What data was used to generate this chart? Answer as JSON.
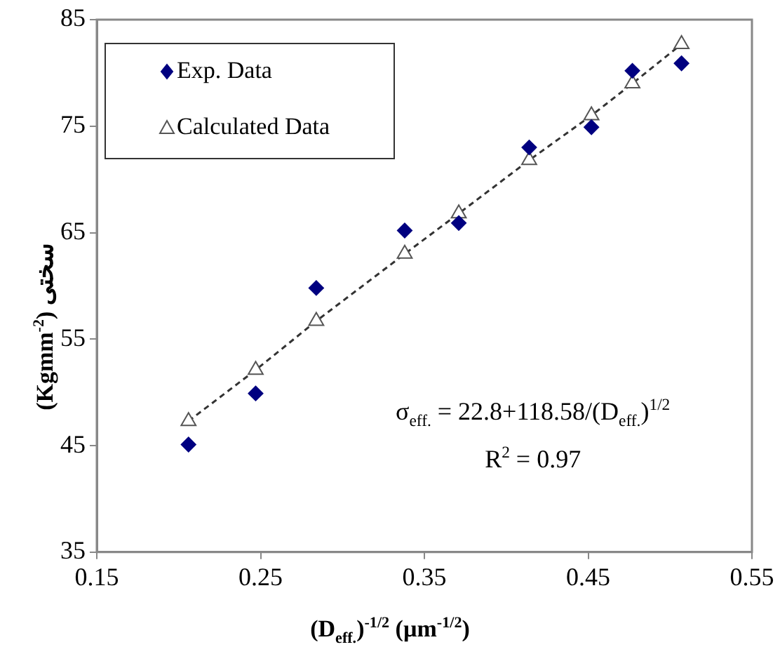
{
  "chart_data": {
    "type": "scatter",
    "xlabel": "(D$_{eff.}$)$^{-1/2}$ (µm$^{-1/2}$)",
    "ylabel": "(Kgmm$^{-2}$) سختی",
    "xlim": [
      0.15,
      0.55
    ],
    "xticks": [
      0.15,
      0.25,
      0.35,
      0.45,
      0.55
    ],
    "ylim": [
      35,
      85
    ],
    "yticks": [
      35,
      45,
      55,
      65,
      75,
      85
    ],
    "grid": false,
    "legend": "top left",
    "series": [
      {
        "name": "Exp. Data",
        "color": "#000080",
        "marker": "diamond",
        "x": [
          0.206,
          0.247,
          0.284,
          0.338,
          0.371,
          0.414,
          0.452,
          0.477,
          0.507
        ],
        "values": [
          45.1,
          49.9,
          59.8,
          65.2,
          65.9,
          73.0,
          74.9,
          80.2,
          80.9
        ]
      },
      {
        "name": "Calculated Data",
        "type": "line",
        "color": "#333333",
        "marker": "triangle",
        "line_style": "dashed",
        "x": [
          0.206,
          0.247,
          0.284,
          0.338,
          0.371,
          0.414,
          0.452,
          0.477,
          0.507
        ],
        "values": [
          47.3,
          52.1,
          56.7,
          63.0,
          66.8,
          71.8,
          76.0,
          79.0,
          82.7
        ]
      }
    ],
    "annotations": [
      "σ$_{eff.}$ = 22.8+118.58/(D$_{eff.}$)$^{1/2}$",
      "R$^{2}$ = 0.97"
    ]
  }
}
